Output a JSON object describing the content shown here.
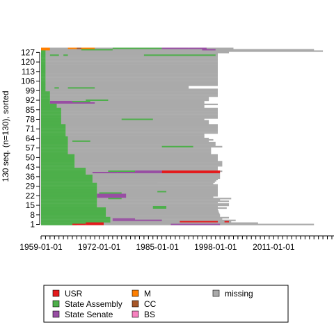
{
  "chart_data": {
    "type": "sequence-index-plot",
    "ylabel": "130 seq. (n=130), sorted",
    "xlabel": "",
    "n_sequences": 130,
    "x_range_years": [
      1959,
      2026
    ],
    "x_tick_labels": [
      "1959-01-01",
      "1972-01-01",
      "1985-01-01",
      "1998-01-01",
      "2011-01-01"
    ],
    "x_tick_label_years": [
      1959,
      1972,
      1985,
      1998,
      2011
    ],
    "y_tick_labels": [
      "1",
      "8",
      "15",
      "22",
      "29",
      "36",
      "43",
      "50",
      "57",
      "64",
      "71",
      "78",
      "85",
      "92",
      "99",
      "106",
      "113",
      "120",
      "127"
    ],
    "y_tick_values": [
      1,
      8,
      15,
      22,
      29,
      36,
      43,
      50,
      57,
      64,
      71,
      78,
      85,
      92,
      99,
      106,
      113,
      120,
      127
    ],
    "states": [
      {
        "key": "usr",
        "name": "USR",
        "color": "#e41a1c"
      },
      {
        "key": "assembly",
        "name": "State Assembly",
        "color": "#4daf4a"
      },
      {
        "key": "senate",
        "name": "State Senate",
        "color": "#984ea3"
      },
      {
        "key": "m",
        "name": "M",
        "color": "#ff7f00"
      },
      {
        "key": "cc",
        "name": "CC",
        "color": "#a65628"
      },
      {
        "key": "bs",
        "name": "BS",
        "color": "#f781bf"
      },
      {
        "key": "missing",
        "name": "missing",
        "color": "#aaaaaa"
      }
    ],
    "green_profile": [
      [
        1,
        1967
      ],
      [
        2,
        1971
      ],
      [
        3,
        1974.5
      ],
      [
        6,
        1974.5
      ],
      [
        7,
        1973.5
      ],
      [
        13,
        1973.5
      ],
      [
        14,
        1971.5
      ],
      [
        31,
        1971.5
      ],
      [
        32,
        1970.5
      ],
      [
        37,
        1970.5
      ],
      [
        38,
        1969
      ],
      [
        42,
        1969
      ],
      [
        43,
        1966.5
      ],
      [
        52,
        1966.5
      ],
      [
        53,
        1965
      ],
      [
        65,
        1965
      ],
      [
        66,
        1964.5
      ],
      [
        74,
        1964.5
      ],
      [
        75,
        1963.5
      ],
      [
        86,
        1963.5
      ],
      [
        87,
        1962.5
      ],
      [
        89,
        1962.5
      ],
      [
        90,
        1961
      ],
      [
        98,
        1961
      ],
      [
        99,
        1960
      ],
      [
        130,
        1960
      ]
    ],
    "gray_end_profile": [
      [
        1,
        2020
      ],
      [
        2,
        2007.5
      ],
      [
        3,
        2001.5
      ],
      [
        4,
        2002.5
      ],
      [
        5,
        1999.5
      ],
      [
        6,
        2001
      ],
      [
        7,
        1999
      ],
      [
        8,
        1999
      ],
      [
        12,
        1998.5
      ],
      [
        13,
        2000.5
      ],
      [
        14,
        1998.5
      ],
      [
        15,
        2001
      ],
      [
        16,
        2001
      ],
      [
        17,
        1998.5
      ],
      [
        18,
        2001
      ],
      [
        19,
        1999
      ],
      [
        20,
        2001.5
      ],
      [
        21,
        1997.5
      ],
      [
        22,
        1998.5
      ],
      [
        30,
        1998.5
      ],
      [
        31,
        1997.5
      ],
      [
        34,
        1998.5
      ],
      [
        35,
        1999
      ],
      [
        38,
        1999
      ],
      [
        39,
        1997.5
      ],
      [
        40,
        1999.5
      ],
      [
        41,
        1998.5
      ],
      [
        43,
        1998.5
      ],
      [
        44,
        1999.5
      ],
      [
        47,
        1999.5
      ],
      [
        48,
        1998.5
      ],
      [
        52,
        1998.5
      ],
      [
        53,
        1997
      ],
      [
        57,
        1997
      ],
      [
        58,
        1999.5
      ],
      [
        59,
        1998
      ],
      [
        61,
        1998
      ],
      [
        62,
        1996.5
      ],
      [
        63,
        1997.5
      ],
      [
        64,
        1996.5
      ],
      [
        65,
        1995.5
      ],
      [
        67,
        1995.5
      ],
      [
        68,
        1998.5
      ],
      [
        74,
        1998.5
      ],
      [
        75,
        1996.5
      ],
      [
        77,
        1996.5
      ],
      [
        78,
        1995.5
      ],
      [
        79,
        1998.5
      ],
      [
        86,
        1998.5
      ],
      [
        87,
        1995.5
      ],
      [
        88,
        1995.5
      ],
      [
        89,
        1998.5
      ],
      [
        90,
        1995.5
      ],
      [
        91,
        1995.5
      ],
      [
        92,
        1996.5
      ],
      [
        94,
        1996.5
      ],
      [
        95,
        1998.5
      ],
      [
        98,
        1998.5
      ],
      [
        99,
        1998.5
      ],
      [
        100,
        1998.5
      ],
      [
        101,
        1992
      ],
      [
        102,
        1992
      ],
      [
        103,
        1998.5
      ],
      [
        126,
        1998.5
      ],
      [
        127,
        2001
      ],
      [
        128,
        2022
      ],
      [
        129,
        2020
      ],
      [
        130,
        2002
      ]
    ],
    "segments": [
      {
        "rows": [
          1,
          1
        ],
        "x": [
          1966,
          1969
        ],
        "state": "usr"
      },
      {
        "rows": [
          1,
          1
        ],
        "x": [
          1969,
          1988
        ],
        "state": "missing"
      },
      {
        "rows": [
          1,
          1
        ],
        "x": [
          1988,
          1999
        ],
        "state": "senate"
      },
      {
        "rows": [
          1,
          2
        ],
        "x": [
          1969,
          1973
        ],
        "state": "usr"
      },
      {
        "rows": [
          2,
          2
        ],
        "x": [
          1976,
          1994
        ],
        "state": "missing"
      },
      {
        "rows": [
          3,
          3
        ],
        "x": [
          1974.5,
          1990
        ],
        "state": "missing"
      },
      {
        "rows": [
          3,
          3
        ],
        "x": [
          1990,
          1998.5
        ],
        "state": "usr"
      },
      {
        "rows": [
          3,
          3
        ],
        "x": [
          2000,
          2001
        ],
        "state": "usr"
      },
      {
        "rows": [
          4,
          4
        ],
        "x": [
          1975,
          1980
        ],
        "state": "senate"
      },
      {
        "rows": [
          4,
          4
        ],
        "x": [
          1980,
          1986
        ],
        "state": "senate"
      },
      {
        "rows": [
          5,
          5
        ],
        "x": [
          1975,
          1980
        ],
        "state": "senate"
      },
      {
        "rows": [
          13,
          14
        ],
        "x": [
          1984,
          1987
        ],
        "state": "assembly"
      },
      {
        "rows": [
          20,
          20
        ],
        "x": [
          1974,
          1977
        ],
        "state": "assembly"
      },
      {
        "rows": [
          21,
          23
        ],
        "x": [
          1971.5,
          1978
        ],
        "state": "senate"
      },
      {
        "rows": [
          24,
          24
        ],
        "x": [
          1972,
          1977
        ],
        "state": "assembly"
      },
      {
        "rows": [
          25,
          25
        ],
        "x": [
          1985,
          1987
        ],
        "state": "assembly"
      },
      {
        "rows": [
          31,
          31
        ],
        "x": [
          1972,
          1985
        ],
        "state": "missing"
      },
      {
        "rows": [
          39,
          39
        ],
        "x": [
          1970.5,
          1976
        ],
        "state": "senate"
      },
      {
        "rows": [
          39,
          40
        ],
        "x": [
          1986,
          1999
        ],
        "state": "usr"
      },
      {
        "rows": [
          39,
          39
        ],
        "x": [
          1976,
          1986
        ],
        "state": "senate"
      },
      {
        "rows": [
          40,
          40
        ],
        "x": [
          1980,
          1986
        ],
        "state": "senate"
      },
      {
        "rows": [
          40,
          40
        ],
        "x": [
          1974,
          1980
        ],
        "state": "assembly"
      },
      {
        "rows": [
          58,
          58
        ],
        "x": [
          1986,
          1993
        ],
        "state": "assembly"
      },
      {
        "rows": [
          62,
          62
        ],
        "x": [
          1966,
          1970
        ],
        "state": "assembly"
      },
      {
        "rows": [
          78,
          78
        ],
        "x": [
          1977,
          1984
        ],
        "state": "assembly"
      },
      {
        "rows": [
          92,
          92
        ],
        "x": [
          1969,
          1974
        ],
        "state": "assembly"
      },
      {
        "rows": [
          90,
          91
        ],
        "x": [
          1961,
          1966
        ],
        "state": "senate"
      },
      {
        "rows": [
          90,
          90
        ],
        "x": [
          1966,
          1971
        ],
        "state": "senate"
      },
      {
        "rows": [
          91,
          91
        ],
        "x": [
          1966,
          1970
        ],
        "state": "assembly"
      },
      {
        "rows": [
          101,
          101
        ],
        "x": [
          1965,
          1971
        ],
        "state": "assembly"
      },
      {
        "rows": [
          101,
          101
        ],
        "x": [
          1962,
          1963
        ],
        "state": "assembly"
      },
      {
        "rows": [
          125,
          125
        ],
        "x": [
          1961,
          1963
        ],
        "state": "assembly"
      },
      {
        "rows": [
          125,
          125
        ],
        "x": [
          1964,
          1965
        ],
        "state": "assembly"
      },
      {
        "rows": [
          125,
          125
        ],
        "x": [
          1982,
          1998
        ],
        "state": "assembly"
      },
      {
        "rows": [
          129,
          130
        ],
        "x": [
          1959,
          1961
        ],
        "state": "m"
      },
      {
        "rows": [
          129,
          130
        ],
        "x": [
          1961,
          1965
        ],
        "state": "missing"
      },
      {
        "rows": [
          130,
          130
        ],
        "x": [
          1965,
          1971
        ],
        "state": "m"
      },
      {
        "rows": [
          130,
          130
        ],
        "x": [
          1967,
          1968
        ],
        "state": "cc"
      },
      {
        "rows": [
          130,
          130
        ],
        "x": [
          1975,
          1986
        ],
        "state": "assembly"
      },
      {
        "rows": [
          130,
          130
        ],
        "x": [
          1986,
          1992
        ],
        "state": "senate"
      },
      {
        "rows": [
          130,
          130
        ],
        "x": [
          1992,
          1996
        ],
        "state": "senate"
      },
      {
        "rows": [
          129,
          129
        ],
        "x": [
          1995,
          1998
        ],
        "state": "senate"
      },
      {
        "rows": [
          129,
          129
        ],
        "x": [
          1968,
          1975
        ],
        "state": "assembly"
      }
    ],
    "legend": {
      "columns": [
        [
          {
            "name": "USR",
            "color": "#e41a1c"
          },
          {
            "name": "State Assembly",
            "color": "#4daf4a"
          },
          {
            "name": "State Senate",
            "color": "#984ea3"
          }
        ],
        [
          {
            "name": "M",
            "color": "#ff7f00"
          },
          {
            "name": "CC",
            "color": "#a65628"
          },
          {
            "name": "BS",
            "color": "#f781bf"
          }
        ],
        [
          {
            "name": "missing",
            "color": "#aaaaaa"
          }
        ]
      ],
      "placement": "bottom"
    }
  }
}
